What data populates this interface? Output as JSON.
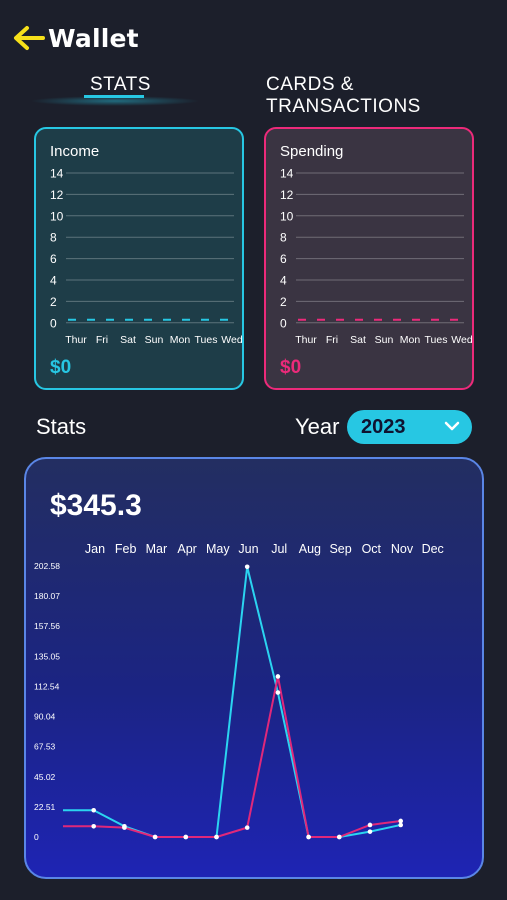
{
  "header": {
    "title": "Wallet",
    "back_icon": "arrow-left-icon"
  },
  "tabs": [
    {
      "label": "STATS",
      "active": true
    },
    {
      "label": "CARDS & TRANSACTIONS",
      "active": false
    }
  ],
  "income_card": {
    "title": "Income",
    "amount": "$0",
    "accent": "#27c7e3",
    "y_ticks": [
      "14",
      "12",
      "10",
      "8",
      "6",
      "4",
      "2",
      "0"
    ],
    "days": [
      "Thur",
      "Fri",
      "Sat",
      "Sun",
      "Mon",
      "Tues",
      "Wed"
    ],
    "values": [
      0,
      0,
      0,
      0,
      0,
      0,
      0
    ]
  },
  "spending_card": {
    "title": "Spending",
    "amount": "$0",
    "accent": "#ec2a7a",
    "y_ticks": [
      "14",
      "12",
      "10",
      "8",
      "6",
      "4",
      "2",
      "0"
    ],
    "days": [
      "Thur",
      "Fri",
      "Sat",
      "Sun",
      "Mon",
      "Tues",
      "Wed"
    ],
    "values": [
      0,
      0,
      0,
      0,
      0,
      0,
      0
    ]
  },
  "stats": {
    "label": "Stats",
    "year_label": "Year",
    "year_value": "2023"
  },
  "chart_data": {
    "type": "line",
    "title": "$345.3",
    "x": [
      "Jan",
      "Feb",
      "Mar",
      "Apr",
      "May",
      "Jun",
      "Jul",
      "Aug",
      "Sep",
      "Oct",
      "Nov",
      "Dec"
    ],
    "y_ticks": [
      "202.58",
      "180.07",
      "157.56",
      "135.05",
      "112.54",
      "90.04",
      "67.53",
      "45.02",
      "22.51",
      "0"
    ],
    "ylim": [
      0,
      202.58
    ],
    "series": [
      {
        "color": "#2bd4f0",
        "values": [
          20,
          20,
          8,
          0,
          0,
          0,
          202,
          108,
          0,
          0,
          4,
          9
        ]
      },
      {
        "color": "#e0287a",
        "values": [
          8,
          8,
          7,
          0,
          0,
          0,
          7,
          120,
          0,
          0,
          9,
          12
        ]
      }
    ]
  }
}
